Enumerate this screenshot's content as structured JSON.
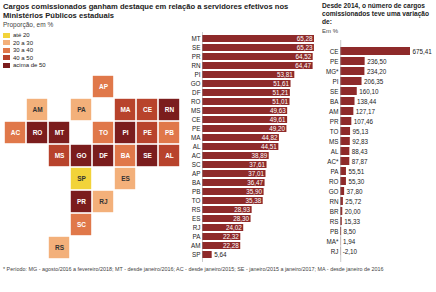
{
  "chart_data": [
    {
      "type": "choropleth",
      "title": "Cargos comissionados ganham destaque em relação a servidores efetivos nos Ministérios Públicos estaduais",
      "subtitle": "Proporção, em %",
      "thresholds": [
        20,
        30,
        40,
        50
      ],
      "classes": [
        {
          "label": "até 20",
          "color": "#f2d33a"
        },
        {
          "label": "20 a 30",
          "color": "#f3b07a"
        },
        {
          "label": "30 a 40",
          "color": "#e0784a"
        },
        {
          "label": "40 a 50",
          "color": "#b8432c"
        },
        {
          "label": "acima de 50",
          "color": "#7b1d1d"
        }
      ]
    },
    {
      "type": "bar",
      "orientation": "horizontal",
      "data_labels": true,
      "tick_labels": "y",
      "color": "#8e2a2a",
      "categories": [
        "MT",
        "SE",
        "PR",
        "RN",
        "PI",
        "GO",
        "DF",
        "RO",
        "MS",
        "CE",
        "PE",
        "MA",
        "AL",
        "AC",
        "SC",
        "AP",
        "BA",
        "PB",
        "TO",
        "RS",
        "ES",
        "RJ",
        "PA",
        "AM",
        "SP"
      ],
      "values": [
        65.28,
        65.23,
        64.52,
        64.47,
        53.81,
        51.61,
        51.21,
        51.01,
        49.63,
        49.61,
        49.2,
        44.82,
        44.51,
        38.89,
        37.61,
        37.01,
        36.47,
        35.9,
        35.38,
        28.93,
        28.3,
        24.02,
        22.32,
        22.28,
        5.64
      ],
      "value_labels": [
        "65,28",
        "65,23",
        "64,52",
        "64,47",
        "53,81",
        "51,61",
        "51,21",
        "51,01",
        "49,63",
        "49,61",
        "49,20",
        "44,82",
        "44,51",
        "38,89",
        "37,61",
        "37,01",
        "36,47",
        "35,90",
        "35,38",
        "28,93",
        "28,30",
        "24,02",
        "22,32",
        "22,28",
        "5,64"
      ]
    },
    {
      "type": "bar",
      "orientation": "horizontal",
      "data_labels": true,
      "tick_labels": "y",
      "color": "#8e2a2a",
      "title": "Desde 2014, o número de cargos comissionados teve uma variação de:",
      "subtitle": "Em %",
      "caption": "* Período: MG - agosto/2016 a fevereiro/2018; MT - desde janeiro/2016; AC - desde janeiro/2015; SE - janeiro/2015 a janeiro/2017; MA - desde janeiro de 2016",
      "categories": [
        "CE",
        "PE",
        "MG*",
        "PI",
        "SE",
        "BA",
        "AM",
        "PR",
        "TO",
        "MS",
        "AL",
        "AC*",
        "PA",
        "RO",
        "GO",
        "RN",
        "BR",
        "RS",
        "PB",
        "MA*",
        "RJ"
      ],
      "values": [
        675.41,
        236.5,
        234.2,
        206.35,
        160.1,
        138.44,
        127.17,
        107.46,
        95.13,
        92.83,
        88.43,
        87.87,
        55.51,
        55.3,
        37.8,
        25.72,
        20,
        15.33,
        8.5,
        1.94,
        -2.1
      ],
      "value_labels": [
        "675,41",
        "236,50",
        "234,20",
        "206,35",
        "160,10",
        "138,44",
        "127,17",
        "107,46",
        "95,13",
        "92,83",
        "88,43",
        "87,87",
        "55,51",
        "55,30",
        "37,80",
        "25,72",
        "20,00",
        "15,33",
        "8,50",
        "1,94",
        "-2,10"
      ]
    }
  ]
}
